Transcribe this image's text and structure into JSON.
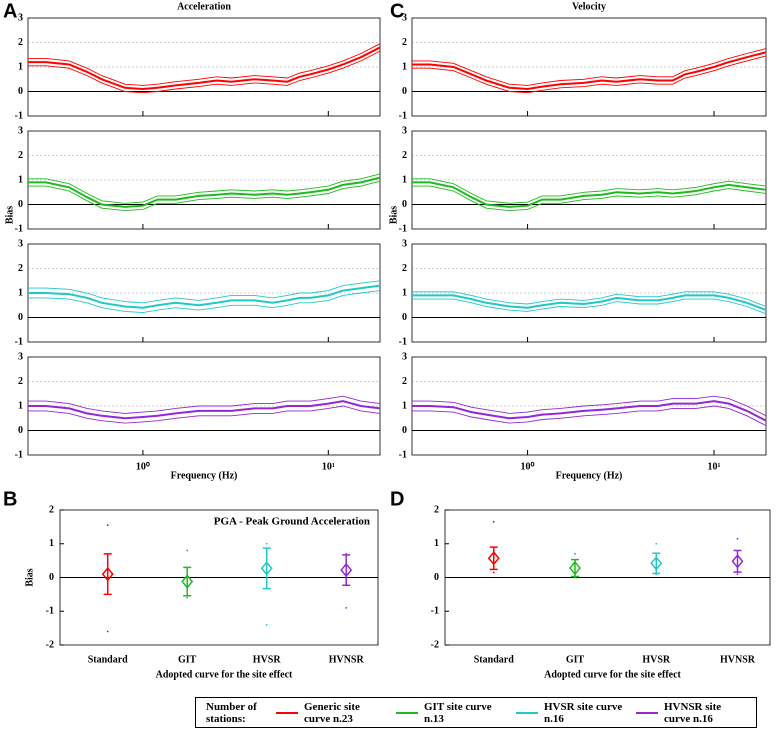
{
  "chart_data": [
    {
      "type": "line",
      "panel": "A",
      "title": "Acceleration",
      "xlabel": "Frequency (Hz)",
      "ylabel": "Bias",
      "log_x": true,
      "x": [
        0.24,
        0.3,
        0.4,
        0.5,
        0.6,
        0.8,
        1,
        1.2,
        1.5,
        2,
        2.5,
        3,
        4,
        5,
        6,
        7,
        8,
        10,
        12,
        15,
        19
      ],
      "xlim": [
        0.24,
        19
      ],
      "xticks": [
        {
          "value": 1,
          "label": "10⁰"
        },
        {
          "value": 10,
          "label": "10¹"
        }
      ],
      "ylim": [
        -1,
        3
      ],
      "yticks": [
        -1,
        0,
        1,
        2,
        3
      ],
      "series": [
        {
          "color": "#ff0000",
          "std": 0.15,
          "values": [
            1.2,
            1.2,
            1.1,
            0.8,
            0.5,
            0.15,
            0.1,
            0.15,
            0.25,
            0.35,
            0.45,
            0.4,
            0.5,
            0.45,
            0.4,
            0.6,
            0.7,
            0.9,
            1.1,
            1.4,
            1.8
          ]
        },
        {
          "color": "#1fba1f",
          "std": 0.15,
          "values": [
            0.9,
            0.9,
            0.7,
            0.3,
            0,
            -0.1,
            -0.05,
            0.2,
            0.2,
            0.35,
            0.4,
            0.45,
            0.4,
            0.45,
            0.4,
            0.45,
            0.5,
            0.6,
            0.8,
            0.9,
            1.1
          ]
        },
        {
          "color": "#22c8c8",
          "std": 0.2,
          "values": [
            1,
            1,
            0.95,
            0.8,
            0.6,
            0.45,
            0.4,
            0.5,
            0.6,
            0.5,
            0.6,
            0.7,
            0.7,
            0.6,
            0.7,
            0.8,
            0.8,
            0.9,
            1.1,
            1.2,
            1.3
          ]
        },
        {
          "color": "#9428d4",
          "std": 0.2,
          "values": [
            1,
            1,
            0.9,
            0.7,
            0.6,
            0.5,
            0.55,
            0.6,
            0.7,
            0.8,
            0.8,
            0.8,
            0.9,
            0.9,
            1,
            1,
            1,
            1.1,
            1.2,
            1,
            0.9
          ]
        }
      ]
    },
    {
      "type": "line",
      "panel": "C",
      "title": "Velocity",
      "xlabel": "Frequency (Hz)",
      "ylabel": "Bias",
      "log_x": true,
      "x": [
        0.24,
        0.3,
        0.4,
        0.5,
        0.6,
        0.8,
        1,
        1.2,
        1.5,
        2,
        2.5,
        3,
        4,
        5,
        6,
        7,
        8,
        10,
        12,
        15,
        19
      ],
      "xlim": [
        0.24,
        19
      ],
      "xticks": [
        {
          "value": 1,
          "label": "10⁰"
        },
        {
          "value": 10,
          "label": "10¹"
        }
      ],
      "ylim": [
        -1,
        3
      ],
      "yticks": [
        -1,
        0,
        1,
        2,
        3
      ],
      "series": [
        {
          "color": "#ff0000",
          "std": 0.15,
          "values": [
            1.1,
            1.1,
            1,
            0.7,
            0.45,
            0.15,
            0.1,
            0.2,
            0.3,
            0.35,
            0.45,
            0.4,
            0.5,
            0.45,
            0.45,
            0.7,
            0.8,
            1,
            1.2,
            1.4,
            1.6
          ]
        },
        {
          "color": "#1fba1f",
          "std": 0.15,
          "values": [
            0.9,
            0.9,
            0.7,
            0.3,
            0,
            -0.1,
            -0.05,
            0.2,
            0.2,
            0.35,
            0.4,
            0.5,
            0.45,
            0.5,
            0.45,
            0.5,
            0.55,
            0.7,
            0.8,
            0.7,
            0.6
          ]
        },
        {
          "color": "#22c8c8",
          "std": 0.15,
          "values": [
            0.9,
            0.9,
            0.9,
            0.75,
            0.6,
            0.45,
            0.4,
            0.5,
            0.6,
            0.55,
            0.65,
            0.8,
            0.7,
            0.7,
            0.8,
            0.9,
            0.9,
            0.9,
            0.8,
            0.6,
            0.3
          ]
        },
        {
          "color": "#9428d4",
          "std": 0.2,
          "values": [
            1,
            1,
            0.95,
            0.75,
            0.65,
            0.5,
            0.55,
            0.65,
            0.7,
            0.8,
            0.85,
            0.9,
            1,
            1,
            1.1,
            1.1,
            1.1,
            1.2,
            1.1,
            0.8,
            0.4
          ]
        }
      ]
    },
    {
      "type": "errorbar",
      "panel": "B",
      "annotation": "PGA - Peak Ground Acceleration",
      "xlabel": "Adopted curve for the site effect",
      "ylabel": "Bias",
      "categories": [
        "Standard",
        "GIT",
        "HVSR",
        "HVNSR"
      ],
      "colors": [
        "#ff0000",
        "#1fba1f",
        "#22c8c8",
        "#9428d4"
      ],
      "values": [
        0.1,
        -0.12,
        0.27,
        0.22
      ],
      "errors": [
        0.6,
        0.42,
        0.6,
        0.45
      ],
      "min": [
        -1.6,
        -0.6,
        -1.4,
        -0.9
      ],
      "max": [
        1.55,
        0.8,
        1,
        0.7
      ],
      "ylim": [
        -2,
        2
      ],
      "yticks": [
        -2,
        -1,
        0,
        1,
        2
      ]
    },
    {
      "type": "errorbar",
      "panel": "D",
      "categories": [
        "Standard",
        "GIT",
        "HVSR",
        "HVNSR"
      ],
      "xlabel": "Adopted curve for the site effect",
      "colors": [
        "#ff0000",
        "#1fba1f",
        "#22c8c8",
        "#9428d4"
      ],
      "values": [
        0.57,
        0.28,
        0.42,
        0.48
      ],
      "errors": [
        0.33,
        0.25,
        0.3,
        0.32
      ],
      "min": [
        0.15,
        0,
        0.1,
        0.1
      ],
      "max": [
        1.65,
        0.7,
        1,
        1.15
      ],
      "ylim": [
        -2,
        2
      ],
      "yticks": [
        -2,
        -1,
        0,
        1,
        2
      ]
    }
  ],
  "legend": {
    "title": "Number of stations:",
    "entries": [
      {
        "name": "Generic site curve n.23",
        "color": "#ff0000"
      },
      {
        "name": "GIT site curve n.13",
        "color": "#1fba1f"
      },
      {
        "name": "HVSR site curve n.16",
        "color": "#22c8c8"
      },
      {
        "name": "HVNSR site curve n.16",
        "color": "#9428d4"
      }
    ]
  }
}
